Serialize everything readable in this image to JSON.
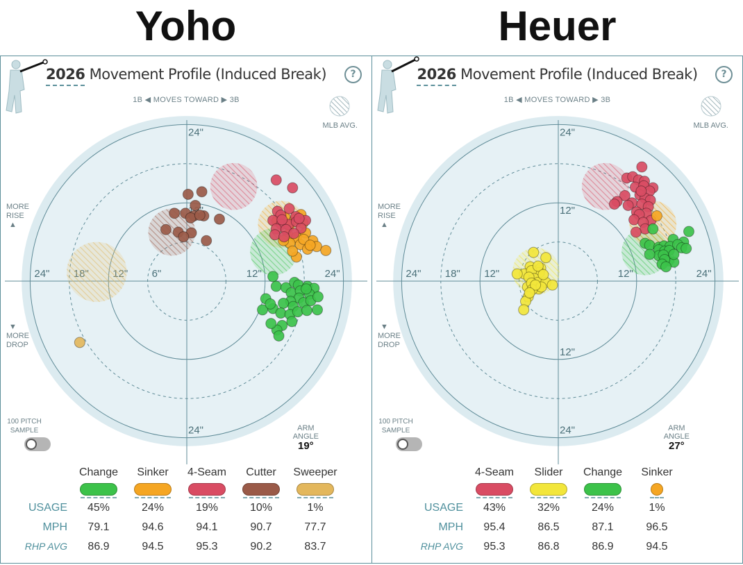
{
  "panels": [
    {
      "pitcher_name": "Yoho",
      "title_year": "2026",
      "title_rest": "Movement Profile (Induced Break)",
      "help_icon": "?",
      "moves_toward": "1B ◀  MOVES TOWARD  ▶ 3B",
      "mlb_avg_label": "MLB AVG.",
      "more_rise": "MORE\nRISE",
      "more_drop": "MORE\nDROP",
      "sample_label": "100 PITCH\nSAMPLE",
      "arm_angle_label": "ARM\nANGLE",
      "arm_angle_value": "19°",
      "row_labels": {
        "usage": "USAGE",
        "mph": "MPH",
        "rhp_avg": "RHP AVG"
      },
      "pitches": [
        {
          "name": "Change",
          "color": "#3cc24a",
          "usage": "45%",
          "mph": "79.1",
          "rhp_avg": "86.9"
        },
        {
          "name": "Sinker",
          "color": "#f5a623",
          "usage": "24%",
          "mph": "94.6",
          "rhp_avg": "94.5"
        },
        {
          "name": "4-Seam",
          "color": "#d94c63",
          "usage": "19%",
          "mph": "94.1",
          "rhp_avg": "95.3"
        },
        {
          "name": "Cutter",
          "color": "#9a5a48",
          "usage": "10%",
          "mph": "90.7",
          "rhp_avg": "90.2"
        },
        {
          "name": "Sweeper",
          "color": "#e3b75c",
          "usage": "1%",
          "mph": "77.7",
          "rhp_avg": "83.7"
        }
      ]
    },
    {
      "pitcher_name": "Heuer",
      "title_year": "2026",
      "title_rest": "Movement Profile (Induced Break)",
      "help_icon": "?",
      "moves_toward": "1B ◀  MOVES TOWARD  ▶ 3B",
      "mlb_avg_label": "MLB AVG.",
      "more_rise": "MORE\nRISE",
      "more_drop": "MORE\nDROP",
      "sample_label": "100 PITCH\nSAMPLE",
      "arm_angle_label": "ARM\nANGLE",
      "arm_angle_value": "27°",
      "row_labels": {
        "usage": "USAGE",
        "mph": "MPH",
        "rhp_avg": "RHP AVG"
      },
      "pitches": [
        {
          "name": "4-Seam",
          "color": "#d94c63",
          "usage": "43%",
          "mph": "95.4",
          "rhp_avg": "95.3"
        },
        {
          "name": "Slider",
          "color": "#f2e63b",
          "usage": "32%",
          "mph": "86.5",
          "rhp_avg": "86.8"
        },
        {
          "name": "Change",
          "color": "#3cc24a",
          "usage": "24%",
          "mph": "87.1",
          "rhp_avg": "86.9"
        },
        {
          "name": "Sinker",
          "color": "#f5a623",
          "usage": "1%",
          "mph": "96.5",
          "rhp_avg": "94.5"
        }
      ]
    }
  ],
  "chart_data": [
    {
      "type": "scatter",
      "title": "2026 Movement Profile (Induced Break)",
      "xlabel": "1B ◀ MOVES TOWARD ▶ 3B",
      "ylabel": "MORE RISE / MORE DROP",
      "x_range_in": [
        -24,
        24
      ],
      "y_range_in": [
        -24,
        24
      ],
      "ring_labels": [
        "6\"",
        "12\"",
        "18\"",
        "24\""
      ],
      "x_tick_labels": [
        "24\"",
        "18\"",
        "12\"",
        "6\"",
        "12\"",
        "24\""
      ],
      "y_tick_labels": [
        "24\"",
        "12\"",
        "24\""
      ],
      "mlb_averages": [
        {
          "pitch": "4-Seam",
          "color": "#d94c63",
          "x": 7.2,
          "y": 14.5,
          "r": 3.6
        },
        {
          "pitch": "Cutter",
          "color": "#9a5a48",
          "x": -2.3,
          "y": 7.5,
          "r": 3.6
        },
        {
          "pitch": "Sinker",
          "color": "#f5a623",
          "x": 14.5,
          "y": 8.7,
          "r": 3.6
        },
        {
          "pitch": "Change",
          "color": "#3cc24a",
          "x": 13.3,
          "y": 4.5,
          "r": 3.6
        },
        {
          "pitch": "Sweeper",
          "color": "#e3b75c",
          "x": -13.8,
          "y": 1.4,
          "r": 4.6
        }
      ],
      "series": [
        {
          "name": "Change",
          "color": "#3cc24a",
          "points": [
            [
              13.2,
              0.7
            ],
            [
              13.7,
              -0.8
            ],
            [
              15.2,
              -1.0
            ],
            [
              16.5,
              -0.2
            ],
            [
              17.1,
              -0.6
            ],
            [
              16.0,
              -1.8
            ],
            [
              17.4,
              -1.5
            ],
            [
              18.5,
              -0.8
            ],
            [
              19.5,
              -1.1
            ],
            [
              18.8,
              -2.0
            ],
            [
              17.2,
              -2.6
            ],
            [
              15.9,
              -3.1
            ],
            [
              14.8,
              -3.4
            ],
            [
              16.3,
              -3.9
            ],
            [
              17.9,
              -3.3
            ],
            [
              19.0,
              -3.0
            ],
            [
              20.1,
              -2.4
            ],
            [
              12.1,
              -2.7
            ],
            [
              11.6,
              -4.4
            ],
            [
              13.2,
              -4.2
            ],
            [
              14.4,
              -4.9
            ],
            [
              15.8,
              -5.1
            ],
            [
              17.0,
              -4.7
            ],
            [
              18.4,
              -4.5
            ],
            [
              16.1,
              -6.2
            ],
            [
              14.6,
              -6.8
            ],
            [
              13.8,
              -7.5
            ],
            [
              14.1,
              -8.4
            ],
            [
              12.9,
              -6.5
            ],
            [
              20.0,
              -4.4
            ],
            [
              12.8,
              -3.5
            ],
            [
              18.3,
              -1.2
            ]
          ]
        },
        {
          "name": "Sinker",
          "color": "#f5a623",
          "points": [
            [
              13.8,
              9.2
            ],
            [
              15.7,
              8.5
            ],
            [
              16.6,
              9.5
            ],
            [
              17.8,
              8.9
            ],
            [
              15.5,
              7.1
            ],
            [
              16.8,
              6.7
            ],
            [
              18.2,
              7.4
            ],
            [
              19.3,
              6.2
            ],
            [
              17.4,
              5.6
            ],
            [
              15.8,
              5.8
            ],
            [
              19.9,
              5.3
            ],
            [
              18.5,
              4.9
            ],
            [
              21.3,
              4.7
            ],
            [
              16.8,
              3.7
            ],
            [
              14.8,
              6.2
            ],
            [
              17.9,
              6.4
            ],
            [
              18.9,
              5.5
            ],
            [
              16.2,
              4.6
            ],
            [
              15.0,
              9.8
            ],
            [
              17.5,
              10.2
            ]
          ]
        },
        {
          "name": "4-Seam",
          "color": "#d94c63",
          "points": [
            [
              13.7,
              15.5
            ],
            [
              16.2,
              14.3
            ],
            [
              13.9,
              10.7
            ],
            [
              15.7,
              11.1
            ],
            [
              14.4,
              10.1
            ],
            [
              16.7,
              9.9
            ],
            [
              13.2,
              9.3
            ],
            [
              14.5,
              8.7
            ],
            [
              15.6,
              8.7
            ],
            [
              16.8,
              9.1
            ],
            [
              18.2,
              9.3
            ],
            [
              13.7,
              8.0
            ],
            [
              15.2,
              7.9
            ],
            [
              17.5,
              8.1
            ],
            [
              16.4,
              7.3
            ],
            [
              13.5,
              7.1
            ],
            [
              14.9,
              6.8
            ],
            [
              17.2,
              9.6
            ],
            [
              14.6,
              9.4
            ]
          ]
        },
        {
          "name": "Cutter",
          "color": "#9a5a48",
          "points": [
            [
              0.2,
              13.3
            ],
            [
              2.3,
              13.7
            ],
            [
              1.3,
              11.6
            ],
            [
              -0.2,
              10.4
            ],
            [
              1.1,
              10.0
            ],
            [
              0.6,
              9.7
            ],
            [
              2.6,
              10.0
            ],
            [
              2.0,
              10.1
            ],
            [
              -1.9,
              10.4
            ],
            [
              5.0,
              9.5
            ],
            [
              -1.3,
              7.5
            ],
            [
              0.7,
              7.4
            ],
            [
              -3.2,
              7.9
            ],
            [
              3.0,
              6.2
            ],
            [
              -0.5,
              6.8
            ]
          ]
        },
        {
          "name": "Sweeper",
          "color": "#e3b75c",
          "points": [
            [
              -16.4,
              -9.4
            ]
          ]
        }
      ]
    },
    {
      "type": "scatter",
      "title": "2026 Movement Profile (Induced Break)",
      "xlabel": "1B ◀ MOVES TOWARD ▶ 3B",
      "ylabel": "MORE RISE / MORE DROP",
      "x_range_in": [
        -24,
        24
      ],
      "y_range_in": [
        -24,
        24
      ],
      "ring_labels": [
        "12\"",
        "18\"",
        "24\""
      ],
      "x_tick_labels": [
        "24\"",
        "18\"",
        "12\"",
        "12\"",
        "24\""
      ],
      "y_tick_labels": [
        "24\"",
        "12\"",
        "12\"",
        "24\""
      ],
      "mlb_averages": [
        {
          "pitch": "4-Seam",
          "color": "#d94c63",
          "x": 7.2,
          "y": 14.5,
          "r": 3.6
        },
        {
          "pitch": "Slider",
          "color": "#f2e63b",
          "x": -3.4,
          "y": 1.5,
          "r": 3.6
        },
        {
          "pitch": "Change",
          "color": "#3cc24a",
          "x": 13.3,
          "y": 4.5,
          "r": 3.6
        },
        {
          "pitch": "Sinker",
          "color": "#f5a623",
          "x": 14.5,
          "y": 8.7,
          "r": 3.6
        }
      ],
      "series": [
        {
          "name": "4-Seam",
          "color": "#d94c63",
          "points": [
            [
              12.8,
              17.5
            ],
            [
              10.5,
              15.8
            ],
            [
              11.4,
              16.0
            ],
            [
              12.3,
              15.5
            ],
            [
              13.2,
              15.3
            ],
            [
              14.5,
              14.3
            ],
            [
              11.8,
              14.4
            ],
            [
              13.1,
              14.6
            ],
            [
              14.0,
              13.8
            ],
            [
              12.5,
              13.2
            ],
            [
              10.2,
              13.1
            ],
            [
              13.3,
              12.7
            ],
            [
              14.1,
              12.4
            ],
            [
              11.3,
              12.0
            ],
            [
              9.0,
              12.2
            ],
            [
              8.6,
              11.8
            ],
            [
              12.8,
              11.8
            ],
            [
              13.8,
              11.4
            ],
            [
              12.0,
              10.6
            ],
            [
              13.5,
              10.4
            ],
            [
              12.4,
              10.2
            ],
            [
              11.6,
              9.4
            ],
            [
              14.2,
              9.3
            ],
            [
              13.0,
              9.0
            ],
            [
              13.3,
              8.0
            ],
            [
              11.9,
              7.5
            ],
            [
              10.7,
              11.6
            ],
            [
              12.7,
              13.8
            ]
          ]
        },
        {
          "name": "Slider",
          "color": "#f2e63b",
          "points": [
            [
              -3.8,
              4.4
            ],
            [
              -1.9,
              3.6
            ],
            [
              -4.3,
              2.2
            ],
            [
              -2.7,
              2.0
            ],
            [
              -5.2,
              1.1
            ],
            [
              -2.9,
              1.3
            ],
            [
              -4.1,
              1.6
            ],
            [
              -3.7,
              0.4
            ],
            [
              -4.5,
              0.6
            ],
            [
              -3.1,
              -0.2
            ],
            [
              -1.9,
              -0.2
            ],
            [
              -0.9,
              -0.6
            ],
            [
              -4.7,
              -0.9
            ],
            [
              -4.1,
              -0.3
            ],
            [
              -3.0,
              -1.2
            ],
            [
              -4.0,
              -1.3
            ],
            [
              -4.6,
              -2.4
            ],
            [
              -5.0,
              -3.1
            ],
            [
              -2.6,
              -0.9
            ],
            [
              -3.5,
              -0.6
            ],
            [
              -4.4,
              -1.8
            ],
            [
              -5.3,
              -4.4
            ],
            [
              -6.3,
              1.1
            ],
            [
              -3.1,
              2.3
            ],
            [
              -2.3,
              1.0
            ]
          ]
        },
        {
          "name": "Change",
          "color": "#3cc24a",
          "points": [
            [
              20.0,
              7.6
            ],
            [
              17.6,
              6.4
            ],
            [
              19.2,
              6.0
            ],
            [
              14.5,
              8.0
            ],
            [
              13.3,
              5.8
            ],
            [
              14.0,
              5.5
            ],
            [
              15.4,
              5.2
            ],
            [
              16.2,
              5.4
            ],
            [
              17.1,
              5.3
            ],
            [
              18.3,
              5.6
            ],
            [
              15.4,
              4.8
            ],
            [
              16.3,
              4.6
            ],
            [
              17.0,
              4.7
            ],
            [
              18.9,
              5.1
            ],
            [
              15.4,
              3.9
            ],
            [
              16.1,
              4.0
            ],
            [
              16.9,
              3.1
            ],
            [
              17.7,
              2.9
            ],
            [
              14.0,
              4.1
            ],
            [
              16.3,
              3.3
            ],
            [
              15.9,
              2.6
            ],
            [
              16.5,
              2.2
            ],
            [
              19.6,
              5.0
            ],
            [
              17.7,
              4.1
            ]
          ]
        },
        {
          "name": "Sinker",
          "color": "#f5a623",
          "points": [
            [
              15.1,
              10.0
            ]
          ]
        }
      ]
    }
  ]
}
